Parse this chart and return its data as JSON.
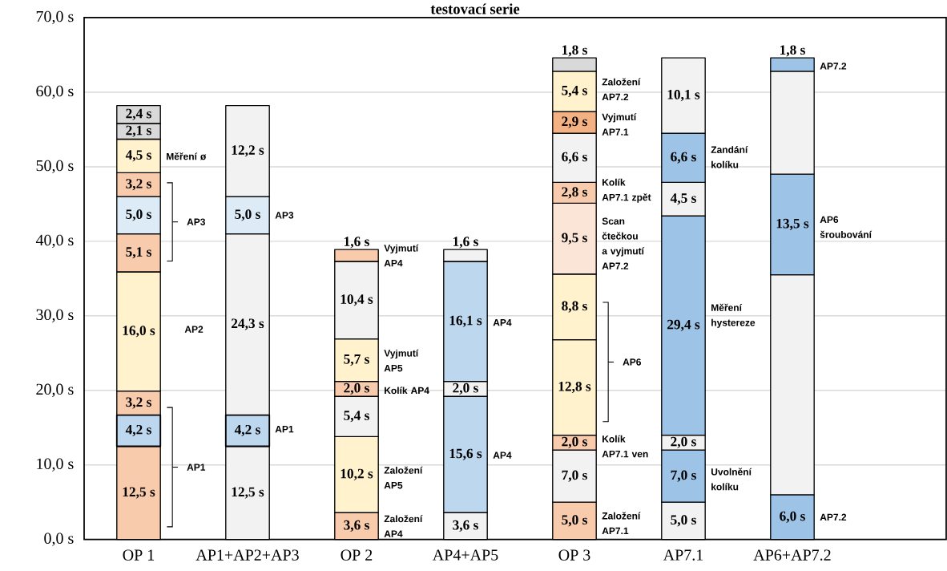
{
  "chart_data": {
    "type": "bar",
    "stacked": true,
    "title": "testovací serie",
    "categories": [
      "OP 1",
      "AP1+AP2+AP3",
      "OP 2",
      "AP4+AP5",
      "OP 3",
      "AP7.1",
      "AP6+AP7.2"
    ],
    "ylim": [
      0,
      70
    ],
    "yticks": [
      {
        "value": 0,
        "label": "0,0 s"
      },
      {
        "value": 10,
        "label": "10,0 s"
      },
      {
        "value": 20,
        "label": "20,0 s"
      },
      {
        "value": 30,
        "label": "30,0 s"
      },
      {
        "value": 40,
        "label": "40,0 s"
      },
      {
        "value": 50,
        "label": "50,0 s"
      },
      {
        "value": 60,
        "label": "60,0 s"
      },
      {
        "value": 70,
        "label": "70,0 s"
      }
    ],
    "grid": "y",
    "series": [
      {
        "values": [
          12.5,
          12.5,
          3.6,
          3.6,
          5.0,
          5.0,
          6.0
        ],
        "colors": [
          "#f8cbad",
          "#f2f2f2",
          "#f8cbad",
          "#f2f2f2",
          "#f8cbad",
          "#f2f2f2",
          "#9dc3e6"
        ],
        "value_labels": [
          "12,5 s",
          "12,5 s",
          "3,6 s",
          "3,6 s",
          "5,0 s",
          "5,0 s",
          "6,0 s"
        ]
      },
      {
        "values": [
          4.2,
          4.2,
          10.2,
          15.6,
          7.0,
          7.0,
          29.5
        ],
        "colors": [
          "#bdd7ee",
          "#bdd7ee",
          "#fff2cc",
          "#bdd7ee",
          "#f2f2f2",
          "#9dc3e6",
          "#f2f2f2"
        ],
        "value_labels": [
          "4,2 s",
          "4,2 s",
          "10,2 s",
          "15,6 s",
          "7,0 s",
          "7,0 s",
          null
        ]
      },
      {
        "values": [
          3.2,
          24.3,
          5.4,
          2.0,
          2.0,
          2.0,
          13.5
        ],
        "colors": [
          "#f8cbad",
          "#f2f2f2",
          "#f2f2f2",
          "#f2f2f2",
          "#f8cbad",
          "#f2f2f2",
          "#9dc3e6"
        ],
        "value_labels": [
          "3,2 s",
          "24,3 s",
          "5,4 s",
          "2,0 s",
          "2,0 s",
          "2,0 s",
          "13,5 s"
        ]
      },
      {
        "values": [
          16.0,
          5.0,
          2.0,
          16.1,
          12.8,
          29.4,
          13.8
        ],
        "colors": [
          "#fff2cc",
          "#ddebf7",
          "#f8cbad",
          "#bdd7ee",
          "#fff2cc",
          "#9dc3e6",
          "#f2f2f2"
        ],
        "value_labels": [
          "16,0 s",
          "5,0 s",
          "2,0 s",
          "16,1 s",
          "12,8 s",
          "29,4 s",
          null
        ]
      },
      {
        "values": [
          5.1,
          12.2,
          5.7,
          1.6,
          8.8,
          4.5,
          1.8
        ],
        "colors": [
          "#f8cbad",
          "#f2f2f2",
          "#fff2cc",
          "#f2f2f2",
          "#fff2cc",
          "#f2f2f2",
          "#9dc3e6"
        ],
        "value_labels": [
          "5,1 s",
          "12,2 s",
          "5,7 s",
          "1,6 s",
          "8,8 s",
          "4,5 s",
          "1,8 s"
        ]
      },
      {
        "values": [
          5.0,
          null,
          10.4,
          null,
          9.5,
          6.6,
          null
        ],
        "colors": [
          "#ddebf7",
          null,
          "#f2f2f2",
          null,
          "#fbe5d6",
          "#9dc3e6",
          null
        ],
        "value_labels": [
          "5,0 s",
          null,
          "10,4 s",
          null,
          "9,5 s",
          "6,6 s",
          null
        ]
      },
      {
        "values": [
          3.2,
          null,
          1.6,
          null,
          2.8,
          10.1,
          null
        ],
        "colors": [
          "#f8cbad",
          null,
          "#f8cbad",
          null,
          "#f8cbad",
          "#f2f2f2",
          null
        ],
        "value_labels": [
          "3,2 s",
          null,
          "1,6 s",
          null,
          "2,8 s",
          "10,1 s",
          null
        ]
      },
      {
        "values": [
          4.5,
          null,
          null,
          null,
          6.6,
          null,
          null
        ],
        "colors": [
          "#fff2cc",
          null,
          null,
          null,
          "#f2f2f2",
          null,
          null
        ],
        "value_labels": [
          "4,5 s",
          null,
          null,
          null,
          "6,6 s",
          null,
          null
        ]
      },
      {
        "values": [
          2.1,
          null,
          null,
          null,
          2.9,
          null,
          null
        ],
        "colors": [
          "#d9d9d9",
          null,
          null,
          null,
          "#f4b183",
          null,
          null
        ],
        "value_labels": [
          "2,1 s",
          null,
          null,
          null,
          "2,9 s",
          null,
          null
        ]
      },
      {
        "values": [
          2.4,
          null,
          null,
          null,
          5.4,
          null,
          null
        ],
        "colors": [
          "#d9d9d9",
          null,
          null,
          null,
          "#fff2cc",
          null,
          null
        ],
        "value_labels": [
          "2,4 s",
          null,
          null,
          null,
          "5,4 s",
          null,
          null
        ]
      },
      {
        "values": [
          null,
          null,
          null,
          null,
          1.8,
          null,
          null
        ],
        "colors": [
          null,
          null,
          null,
          null,
          "#d9d9d9",
          null,
          null
        ],
        "value_labels": [
          null,
          null,
          null,
          null,
          "1,8 s",
          null,
          null
        ]
      }
    ],
    "annotations": [
      "Měření ø",
      "AP3",
      "AP2",
      "AP1",
      "AP3",
      "AP1",
      "Vyjmutí AP4",
      "Vyjmutí AP5",
      "Kolík AP4",
      "Založení AP5",
      "Založení AP4",
      "AP4",
      "AP4",
      "Založení AP7.2",
      "Vyjmutí AP7.1",
      "Kolík AP7.1 zpět",
      "Scan čtečkou a vyjmutí AP7.2",
      "AP6",
      "Kolík AP7.1 ven",
      "Založení AP7.1",
      "Zandání kolíku",
      "Měření hystereze",
      "Uvolnění kolíku",
      "AP7.2",
      "AP6 šroubování",
      "AP7.2"
    ]
  }
}
